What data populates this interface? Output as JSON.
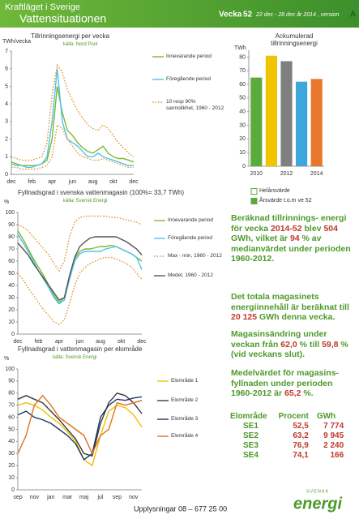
{
  "header": {
    "title": "Kraftläget i Sverige",
    "subtitle": "Vattensituationen",
    "week_label": "Vecka",
    "week": "52",
    "period": "22 dec - 28 dec år 2014 , version",
    "version": "A"
  },
  "chart_data": [
    {
      "type": "line",
      "title": "Tillrinningsenergi per vecka",
      "source": "källa: Nord Pool",
      "y_label": "TWh/vecka",
      "categories": [
        "dec",
        null,
        null,
        null,
        "feb",
        null,
        null,
        null,
        "apr",
        null,
        null,
        null,
        "jun",
        null,
        null,
        null,
        "aug",
        null,
        null,
        null,
        "okt",
        null,
        null,
        null,
        "dec"
      ],
      "ylim": [
        0,
        7
      ],
      "yticks": [
        0,
        1,
        2,
        3,
        4,
        5,
        6,
        7
      ],
      "series": [
        {
          "name": "Innevarande period",
          "color": "#7cb82f",
          "values": [
            0.7,
            0.6,
            0.5,
            0.5,
            0.5,
            0.5,
            0.6,
            0.8,
            2.0,
            5.0,
            3.5,
            2.5,
            2.2,
            1.8,
            1.5,
            1.3,
            1.2,
            1.4,
            1.6,
            1.2,
            1.0,
            0.9,
            0.9,
            0.8,
            0.7
          ]
        },
        {
          "name": "Föregående period",
          "color": "#4fc3e8",
          "values": [
            0.6,
            0.5,
            0.5,
            0.4,
            0.4,
            0.5,
            0.6,
            1.0,
            3.0,
            6.0,
            3.0,
            2.0,
            1.8,
            1.6,
            1.3,
            1.0,
            1.0,
            1.2,
            1.0,
            0.9,
            0.8,
            0.7,
            0.6,
            0.5,
            0.5
          ]
        },
        {
          "name": "10 resp 90% sannolikhet, 1960 - 2012",
          "color": "#e0902a",
          "dash": true,
          "values": [
            1.0,
            0.9,
            0.8,
            0.8,
            0.8,
            0.9,
            1.0,
            1.8,
            4.5,
            6.2,
            5.8,
            4.8,
            4.2,
            3.6,
            3.2,
            2.8,
            2.6,
            2.5,
            2.8,
            2.6,
            2.2,
            1.8,
            1.5,
            1.2,
            1.0
          ]
        },
        {
          "color": "#e0902a",
          "dash": true,
          "values": [
            0.4,
            0.4,
            0.3,
            0.3,
            0.3,
            0.3,
            0.4,
            0.5,
            1.0,
            2.8,
            2.6,
            2.0,
            1.6,
            1.2,
            1.0,
            0.9,
            0.8,
            0.8,
            0.9,
            0.8,
            0.7,
            0.6,
            0.5,
            0.4,
            0.4
          ]
        }
      ]
    },
    {
      "type": "bar",
      "title": "Ackumulerad tillrinningsenergi",
      "y_label": "TWh",
      "categories": [
        "2010",
        null,
        "2012",
        null,
        "2014"
      ],
      "values": [
        65,
        81,
        77,
        62,
        64
      ],
      "colors": [
        "#5aab3c",
        "#f2c400",
        "#7f7f7f",
        "#3fa6dc",
        "#e8772e"
      ],
      "ylim": [
        0,
        85
      ],
      "yticks": [
        0,
        10,
        20,
        30,
        40,
        50,
        60,
        70,
        80
      ],
      "legend": [
        {
          "name": "Helårsvärde",
          "color": "#ffffff"
        },
        {
          "name": "Årsvärde t.o.m ve 52",
          "color": "#5aab3c"
        }
      ]
    },
    {
      "type": "line",
      "title": "Fyllnadsgrad i svenska vattenmagasin (100%= 33,7 TWh)",
      "source": "källa: Svensk Energi",
      "y_label": "%",
      "categories": [
        "dec",
        null,
        null,
        null,
        "feb",
        null,
        null,
        null,
        "apr",
        null,
        null,
        null,
        "jun",
        null,
        null,
        null,
        "aug",
        null,
        null,
        null,
        "okt",
        null,
        null,
        null,
        "dec"
      ],
      "ylim": [
        0,
        100
      ],
      "yticks": [
        0,
        10,
        20,
        30,
        40,
        50,
        60,
        70,
        80,
        90,
        100
      ],
      "series": [
        {
          "name": "Innevarande period",
          "color": "#7cb82f",
          "values": [
            85,
            78,
            70,
            62,
            55,
            48,
            40,
            32,
            26,
            30,
            48,
            62,
            68,
            70,
            70,
            71,
            72,
            72,
            73,
            72,
            70,
            68,
            66,
            63,
            60
          ]
        },
        {
          "name": "Föregående period",
          "color": "#4fc3e8",
          "values": [
            82,
            75,
            68,
            60,
            52,
            45,
            38,
            30,
            25,
            28,
            45,
            60,
            66,
            68,
            68,
            68,
            68,
            70,
            71,
            72,
            70,
            68,
            66,
            63,
            53
          ]
        },
        {
          "name": "Max - min, 1960 - 2012",
          "color": "#e0902a",
          "dash": true,
          "values": [
            90,
            88,
            85,
            80,
            75,
            70,
            65,
            58,
            52,
            60,
            80,
            92,
            96,
            97,
            97,
            97,
            97,
            97,
            96,
            96,
            95,
            94,
            93,
            92,
            90
          ]
        },
        {
          "color": "#e0902a",
          "dash": true,
          "values": [
            50,
            45,
            38,
            32,
            26,
            20,
            15,
            10,
            8,
            12,
            25,
            40,
            50,
            55,
            58,
            60,
            62,
            63,
            63,
            62,
            60,
            58,
            55,
            50,
            45
          ]
        },
        {
          "name": "Medel, 1960 - 2012",
          "color": "#555555",
          "values": [
            75,
            70,
            65,
            58,
            52,
            46,
            40,
            34,
            28,
            30,
            48,
            63,
            72,
            76,
            79,
            80,
            80,
            80,
            80,
            80,
            78,
            76,
            73,
            70,
            65
          ]
        }
      ]
    },
    {
      "type": "line",
      "title": "Fyllnadsgrad i vattenmagasin per elområde",
      "source": "källa: Svensk Energi",
      "y_label": "%",
      "categories": [
        "sep",
        null,
        "nov",
        null,
        "jan",
        null,
        "mar",
        null,
        "maj",
        null,
        "jul",
        null,
        "sep",
        null,
        "nov",
        null
      ],
      "ylim": [
        0,
        100
      ],
      "yticks": [
        0,
        10,
        20,
        30,
        40,
        50,
        60,
        70,
        80,
        90,
        100
      ],
      "series": [
        {
          "name": "Elområde 1",
          "color": "#f0c000",
          "values": [
            70,
            72,
            70,
            66,
            60,
            55,
            48,
            40,
            25,
            20,
            45,
            65,
            70,
            68,
            62,
            52
          ]
        },
        {
          "name": "Elområde 2",
          "color": "#3a3a3a",
          "values": [
            75,
            78,
            75,
            72,
            65,
            58,
            50,
            42,
            30,
            28,
            55,
            72,
            80,
            78,
            72,
            63
          ]
        },
        {
          "name": "Elområde 3",
          "color": "#1f3864",
          "values": [
            62,
            65,
            60,
            58,
            55,
            50,
            45,
            38,
            25,
            30,
            60,
            70,
            75,
            74,
            76,
            77
          ]
        },
        {
          "name": "Elområde 4",
          "color": "#e07020",
          "values": [
            30,
            45,
            70,
            78,
            70,
            60,
            55,
            50,
            45,
            30,
            45,
            50,
            72,
            70,
            72,
            74
          ]
        }
      ]
    }
  ],
  "summary": [
    [
      "Beräknad tillrinnings- energi för vecka ",
      "2014-52",
      " blev ",
      "504",
      " GWh, vilket är ",
      "94",
      " % av medianvärdet under perioden 1960-2012."
    ],
    [
      "Det totala magasinets energiinnehåll är beräknat till ",
      "20 125",
      " GWh denna vecka."
    ],
    [
      "Magasinsändring under veckan från ",
      "62,0",
      " % till ",
      "59,8",
      " % (vid veckans slut)."
    ],
    [
      "Medelvärdet för magasins- fyllnaden under perioden 1960-2012 är ",
      "65,2",
      " %."
    ]
  ],
  "table": {
    "header": [
      "Elområde",
      "Procent",
      "GWh"
    ],
    "rows": [
      [
        "SE1",
        "52,5",
        "7 774"
      ],
      [
        "SE2",
        "63,2",
        "9 945"
      ],
      [
        "SE3",
        "76,9",
        "2 240"
      ],
      [
        "SE4",
        "74,1",
        "166"
      ]
    ]
  },
  "footer": "Upplysningar 08 – 677 25 00",
  "logo": {
    "top": "SVENSK",
    "word": "energi"
  }
}
